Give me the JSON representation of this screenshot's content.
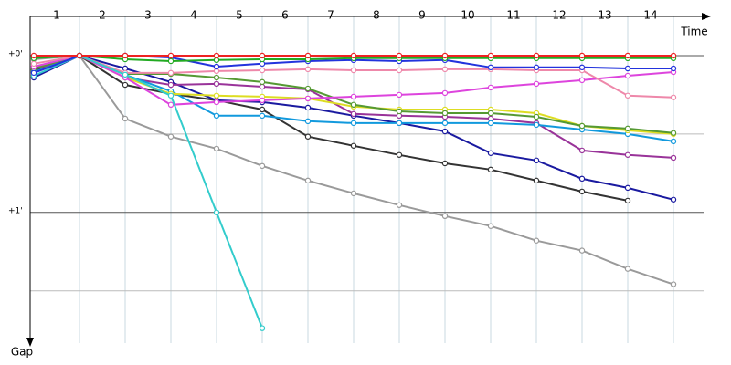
{
  "chart_data": {
    "type": "line",
    "x_axis_label": "Time",
    "y_axis_label": "Gap",
    "x": [
      0,
      1,
      2,
      3,
      4,
      5,
      6,
      7,
      8,
      9,
      10,
      11,
      12,
      13,
      14
    ],
    "xlim": [
      0,
      14.8
    ],
    "xticks": [
      1,
      2,
      3,
      4,
      5,
      6,
      7,
      8,
      9,
      10,
      11,
      12,
      13,
      14
    ],
    "ylim": [
      -15,
      110
    ],
    "y_reversed": true,
    "yticks": [
      {
        "value": 0,
        "label": "+0'"
      },
      {
        "value": 60,
        "label": "+1'"
      }
    ],
    "minor_yticks": [
      30,
      90
    ],
    "grid": true,
    "series": [
      {
        "color": "#9a9a9a",
        "values": [
          1.4,
          0,
          24.1,
          31.0,
          35.6,
          42.2,
          47.8,
          52.7,
          57.2,
          61.4,
          65.2,
          70.8,
          74.6,
          81.6,
          87.5
        ]
      },
      {
        "color": "#333333",
        "values": [
          5.6,
          0,
          11.2,
          14.6,
          17.1,
          20.6,
          31.0,
          34.5,
          38.0,
          41.2,
          43.6,
          47.8,
          52.0,
          55.5,
          null
        ]
      },
      {
        "color": "#1a1aa0",
        "values": [
          8.4,
          0,
          4.9,
          10.1,
          17.1,
          17.8,
          19.9,
          23.0,
          25.8,
          29.0,
          37.3,
          40.1,
          47.1,
          50.6,
          55.1
        ]
      },
      {
        "color": "#993399",
        "values": [
          5.2,
          0,
          8.4,
          11.2,
          10.8,
          11.9,
          12.9,
          22.3,
          23.0,
          23.4,
          24.1,
          25.8,
          36.3,
          38.0,
          39.1
        ]
      },
      {
        "color": "#1199dd",
        "values": [
          6.3,
          0,
          7.3,
          13.6,
          23.0,
          23.0,
          25.1,
          25.8,
          25.8,
          25.8,
          25.8,
          26.5,
          28.3,
          30.0,
          32.8
        ]
      },
      {
        "color": "#dddd22",
        "values": [
          0.7,
          0,
          8.4,
          14.6,
          15.3,
          15.7,
          16.4,
          19.5,
          20.6,
          20.6,
          20.6,
          22.0,
          26.9,
          28.6,
          30.0
        ]
      },
      {
        "color": "#559933",
        "values": [
          4.9,
          0,
          7.0,
          7.0,
          8.4,
          10.1,
          12.6,
          18.8,
          21.3,
          22.0,
          22.0,
          23.4,
          26.9,
          27.9,
          29.6
        ]
      },
      {
        "color": "#dd44dd",
        "values": [
          4.2,
          0,
          8.4,
          18.8,
          17.8,
          17.1,
          16.4,
          15.7,
          15.0,
          14.3,
          12.2,
          10.8,
          9.4,
          7.7,
          6.3
        ]
      },
      {
        "color": "#ee88aa",
        "values": [
          3.1,
          0,
          6.6,
          6.6,
          5.9,
          5.6,
          5.2,
          5.6,
          5.6,
          5.2,
          5.2,
          5.6,
          5.6,
          15.3,
          16.0
        ]
      },
      {
        "color": "#33cccc",
        "values": [
          7.7,
          0,
          7.3,
          15.3,
          60.0,
          104.3,
          null,
          null,
          null,
          null,
          null,
          null,
          null,
          null,
          null
        ]
      },
      {
        "color": "#2233dd",
        "values": [
          6.6,
          0,
          0,
          0.7,
          4.2,
          3.1,
          2.1,
          1.7,
          2.1,
          1.7,
          4.5,
          4.5,
          4.5,
          4.9,
          4.9
        ]
      },
      {
        "color": "#22aa22",
        "values": [
          1.0,
          0,
          1.4,
          2.1,
          1.7,
          1.4,
          1.4,
          1.0,
          1.0,
          1.0,
          1.0,
          1.0,
          1.0,
          1.0,
          1.0
        ]
      },
      {
        "color": "#ee2222",
        "values": [
          0,
          0,
          0,
          0,
          0,
          0,
          0,
          0,
          0,
          0,
          0,
          0,
          0,
          0,
          0
        ]
      }
    ]
  }
}
